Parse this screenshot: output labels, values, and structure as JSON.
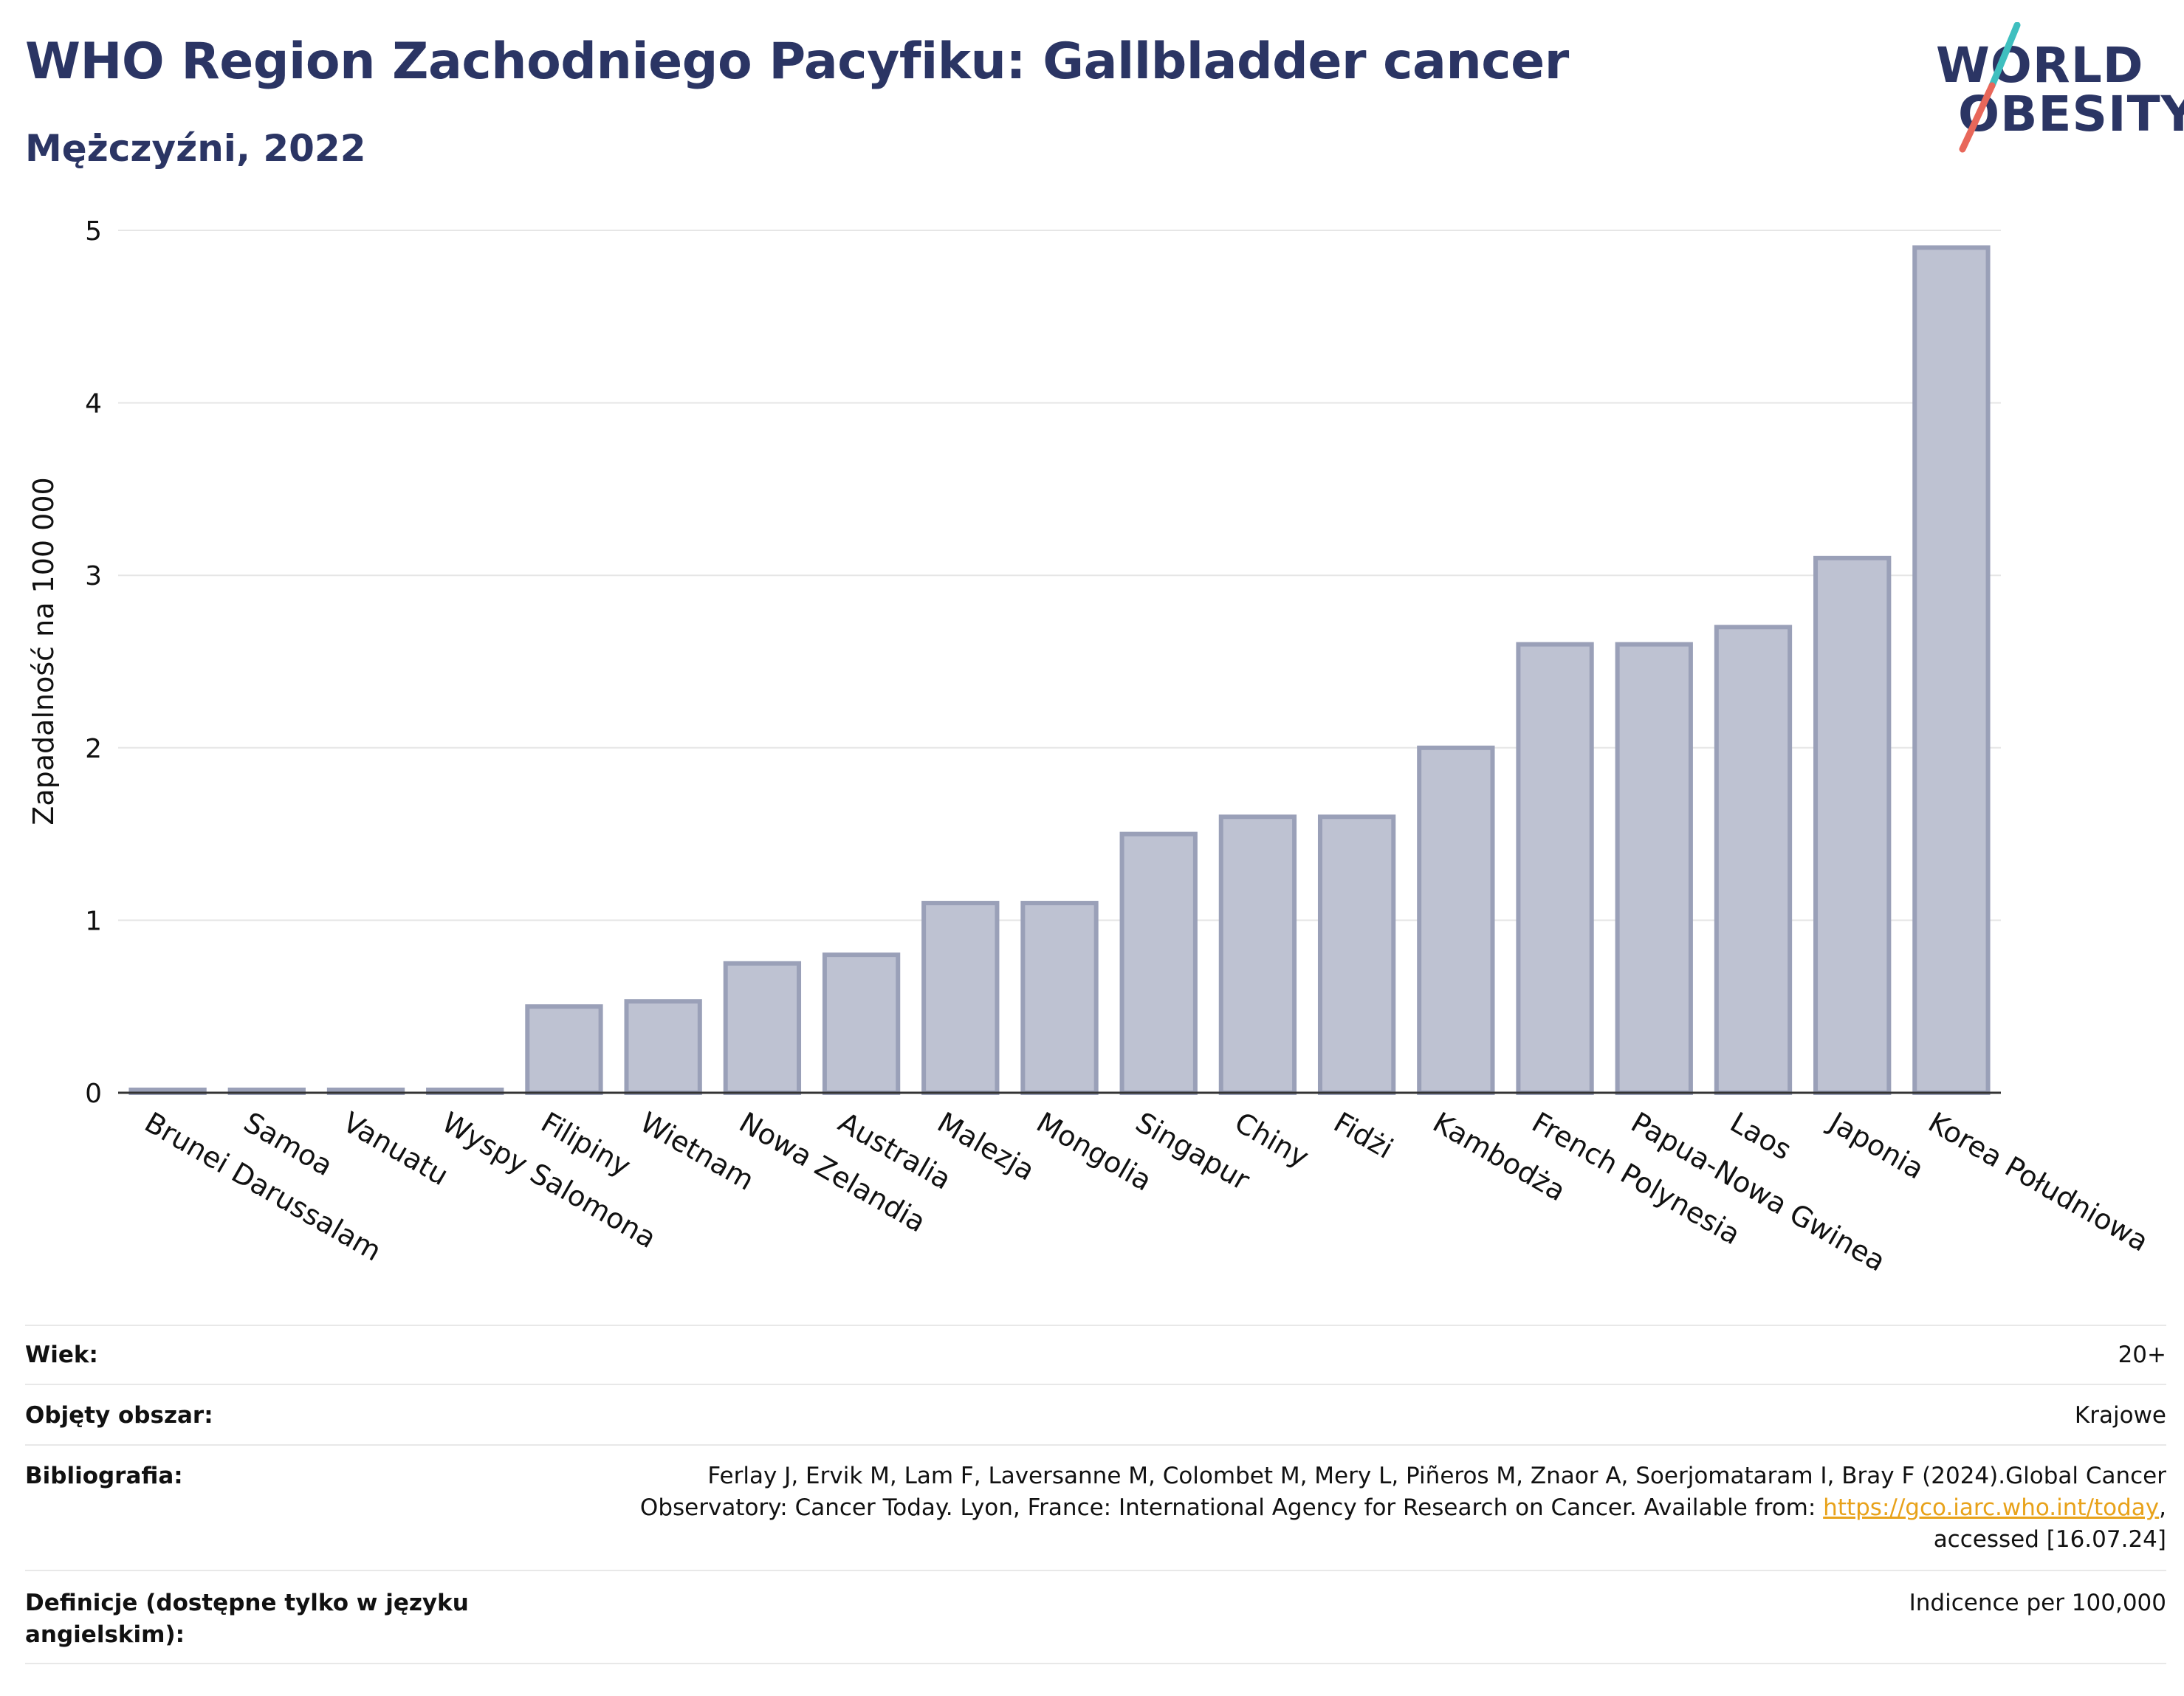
{
  "header": {
    "title": "WHO Region Zachodniego Pacyfiku: Gallbladder cancer",
    "subtitle": "Mężczyźni, 2022"
  },
  "logo": {
    "line1": "WORLD",
    "line2": "OBESITY",
    "accent_color_1": "#3fbfbf",
    "accent_color_2": "#e8675a"
  },
  "chart_data": {
    "type": "bar",
    "title": "",
    "xlabel": "",
    "ylabel": "Zapadalność na 100 000",
    "ylim": [
      0,
      5
    ],
    "yticks": [
      "0",
      "1",
      "2",
      "3",
      "4",
      "5"
    ],
    "grid": true,
    "legend": "none",
    "bar_color": "#bec2d2",
    "bar_edge_color": "#9aa0b8",
    "categories": [
      "Brunei Darussalam",
      "Samoa",
      "Vanuatu",
      "Wyspy Salomona",
      "Filipiny",
      "Wietnam",
      "Nowa Zelandia",
      "Australia",
      "Malezja",
      "Mongolia",
      "Singapur",
      "Chiny",
      "Fidżi",
      "Kambodża",
      "French Polynesia",
      "Papua-Nowa Gwinea",
      "Laos",
      "Japonia",
      "Korea Południowa"
    ],
    "values": [
      0.01,
      0.01,
      0.01,
      0.01,
      0.5,
      0.53,
      0.75,
      0.8,
      1.1,
      1.1,
      1.5,
      1.6,
      1.6,
      2.0,
      2.6,
      2.6,
      2.7,
      3.1,
      4.9
    ]
  },
  "info": {
    "age_label": "Wiek:",
    "age_value": "20+",
    "coverage_label": "Objęty obszar:",
    "coverage_value": "Krajowe",
    "biblio_label": "Bibliografia:",
    "biblio_text_1": "Ferlay J, Ervik M, Lam F, Laversanne M, Colombet M, Mery L, Piñeros M, Znaor A, Soerjomataram I, Bray F (2024).Global Cancer",
    "biblio_text_2": "Observatory: Cancer Today. Lyon, France: International Agency for Research on Cancer. Available from: ",
    "biblio_link": "https://gco.iarc.who.int/today",
    "biblio_text_3": ",",
    "biblio_text_4": "accessed [16.07.24]",
    "definitions_label": "Definicje (dostępne tylko w języku angielskim):",
    "definitions_value": "Indicence per 100,000"
  }
}
